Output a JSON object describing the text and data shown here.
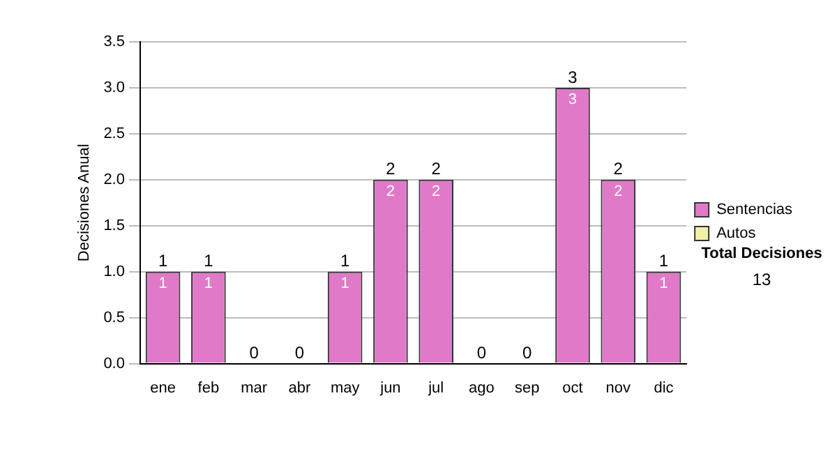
{
  "chart_data": {
    "type": "bar",
    "ylabel": "Decisiones Anual",
    "categories": [
      "ene",
      "feb",
      "mar",
      "abr",
      "may",
      "jun",
      "jul",
      "ago",
      "sep",
      "oct",
      "nov",
      "dic"
    ],
    "series": [
      {
        "name": "Sentencias",
        "color": "#e07ac8",
        "values": [
          1,
          1,
          0,
          0,
          1,
          2,
          2,
          0,
          0,
          3,
          2,
          1
        ],
        "value_labels": [
          "1",
          "1",
          null,
          null,
          "1",
          "2",
          "2",
          null,
          null,
          "3",
          "2",
          "1"
        ]
      },
      {
        "name": "Autos",
        "color": "#f0f0a8",
        "values": [
          0,
          0,
          0,
          0,
          0,
          0,
          0,
          0,
          0,
          0,
          0,
          0
        ]
      }
    ],
    "stacked": true,
    "totals": [
      "1",
      "1",
      "0",
      "0",
      "1",
      "2",
      "2",
      "0",
      "0",
      "3",
      "2",
      "1"
    ],
    "ylim": [
      0,
      3.5
    ],
    "yticks": [
      {
        "value": 0,
        "label": "0.0"
      },
      {
        "value": 0.5,
        "label": "0.5"
      },
      {
        "value": 1,
        "label": "1.0"
      },
      {
        "value": 1.5,
        "label": "1.5"
      },
      {
        "value": 2,
        "label": "2.0"
      },
      {
        "value": 2.5,
        "label": "2.5"
      },
      {
        "value": 3,
        "label": "3.0"
      },
      {
        "value": 3.5,
        "label": "3.5"
      }
    ],
    "grid": "y",
    "legend": "right",
    "annotations": [
      "Total Decisiones",
      "13"
    ]
  }
}
